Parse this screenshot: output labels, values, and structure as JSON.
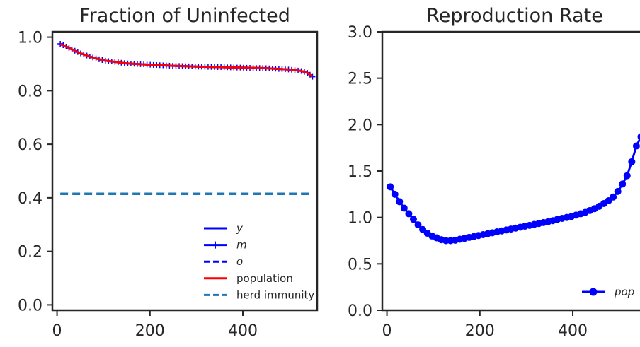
{
  "chart_data": [
    {
      "type": "line",
      "title": "Fraction of Uninfected",
      "xlabel": "",
      "ylabel": "",
      "xlim": [
        -10,
        560
      ],
      "ylim": [
        -0.02,
        1.02
      ],
      "xticks": [
        0,
        200,
        400
      ],
      "xtick_labels": [
        "0",
        "200",
        "400"
      ],
      "yticks": [
        0.0,
        0.2,
        0.4,
        0.6,
        0.8,
        1.0
      ],
      "ytick_labels": [
        "0.0",
        "0.2",
        "0.4",
        "0.6",
        "0.8",
        "1.0"
      ],
      "grid": false,
      "legend_position": "lower-right",
      "x": [
        7,
        25,
        50,
        75,
        100,
        150,
        200,
        250,
        300,
        350,
        400,
        450,
        500,
        525,
        540,
        550
      ],
      "series": [
        {
          "name": "y",
          "color": "#0000ff",
          "style": "solid",
          "values": [
            0.975,
            0.96,
            0.94,
            0.925,
            0.913,
            0.902,
            0.897,
            0.893,
            0.89,
            0.888,
            0.886,
            0.884,
            0.879,
            0.874,
            0.866,
            0.852
          ]
        },
        {
          "name": "m",
          "color": "#0000ff",
          "style": "plus-marker",
          "values": [
            0.975,
            0.96,
            0.94,
            0.925,
            0.913,
            0.902,
            0.897,
            0.893,
            0.89,
            0.888,
            0.886,
            0.884,
            0.879,
            0.874,
            0.866,
            0.852
          ]
        },
        {
          "name": "o",
          "color": "#0000ff",
          "style": "dashed",
          "values": [
            0.975,
            0.96,
            0.94,
            0.925,
            0.913,
            0.902,
            0.897,
            0.893,
            0.89,
            0.888,
            0.886,
            0.884,
            0.879,
            0.874,
            0.866,
            0.852
          ]
        },
        {
          "name": "population",
          "color": "#ff0000",
          "style": "solid",
          "values": [
            0.975,
            0.96,
            0.94,
            0.925,
            0.913,
            0.902,
            0.897,
            0.893,
            0.89,
            0.888,
            0.886,
            0.884,
            0.879,
            0.874,
            0.866,
            0.852
          ]
        },
        {
          "name": "herd immunity",
          "color": "#1f77b4",
          "style": "dashed",
          "values": [
            0.415,
            0.415,
            0.415,
            0.415,
            0.415,
            0.415,
            0.415,
            0.415,
            0.415,
            0.415,
            0.415,
            0.415,
            0.415,
            0.415,
            0.415,
            0.415
          ]
        }
      ]
    },
    {
      "type": "line",
      "title": "Reproduction Rate",
      "xlabel": "",
      "ylabel": "",
      "xlim": [
        -10,
        560
      ],
      "ylim": [
        0.0,
        3.0
      ],
      "xticks": [
        0,
        200,
        400
      ],
      "xtick_labels": [
        "0",
        "200",
        "400"
      ],
      "yticks": [
        0.0,
        0.5,
        1.0,
        1.5,
        2.0,
        2.5,
        3.0
      ],
      "ytick_labels": [
        "0.0",
        "0.5",
        "1.0",
        "1.5",
        "2.0",
        "2.5",
        "3.0"
      ],
      "grid": false,
      "legend_position": "lower-right",
      "x": [
        7,
        17,
        27,
        37,
        47,
        57,
        67,
        77,
        87,
        97,
        107,
        117,
        127,
        137,
        147,
        157,
        167,
        177,
        187,
        197,
        207,
        217,
        227,
        237,
        247,
        257,
        267,
        277,
        287,
        297,
        307,
        317,
        327,
        337,
        347,
        357,
        367,
        377,
        387,
        397,
        407,
        417,
        427,
        437,
        447,
        457,
        467,
        477,
        487,
        497,
        507,
        517,
        527,
        537,
        547
      ],
      "series": [
        {
          "name": "pop",
          "color": "#0000ff",
          "style": "solid-circle-marker",
          "values": [
            1.33,
            1.25,
            1.17,
            1.1,
            1.04,
            0.98,
            0.92,
            0.87,
            0.83,
            0.8,
            0.78,
            0.76,
            0.75,
            0.75,
            0.755,
            0.765,
            0.775,
            0.785,
            0.795,
            0.805,
            0.815,
            0.825,
            0.835,
            0.845,
            0.855,
            0.865,
            0.875,
            0.885,
            0.895,
            0.905,
            0.915,
            0.925,
            0.935,
            0.945,
            0.955,
            0.965,
            0.98,
            0.99,
            1.0,
            1.01,
            1.025,
            1.04,
            1.055,
            1.075,
            1.095,
            1.12,
            1.15,
            1.18,
            1.22,
            1.28,
            1.36,
            1.45,
            1.6,
            1.77,
            1.87
          ]
        }
      ]
    }
  ]
}
